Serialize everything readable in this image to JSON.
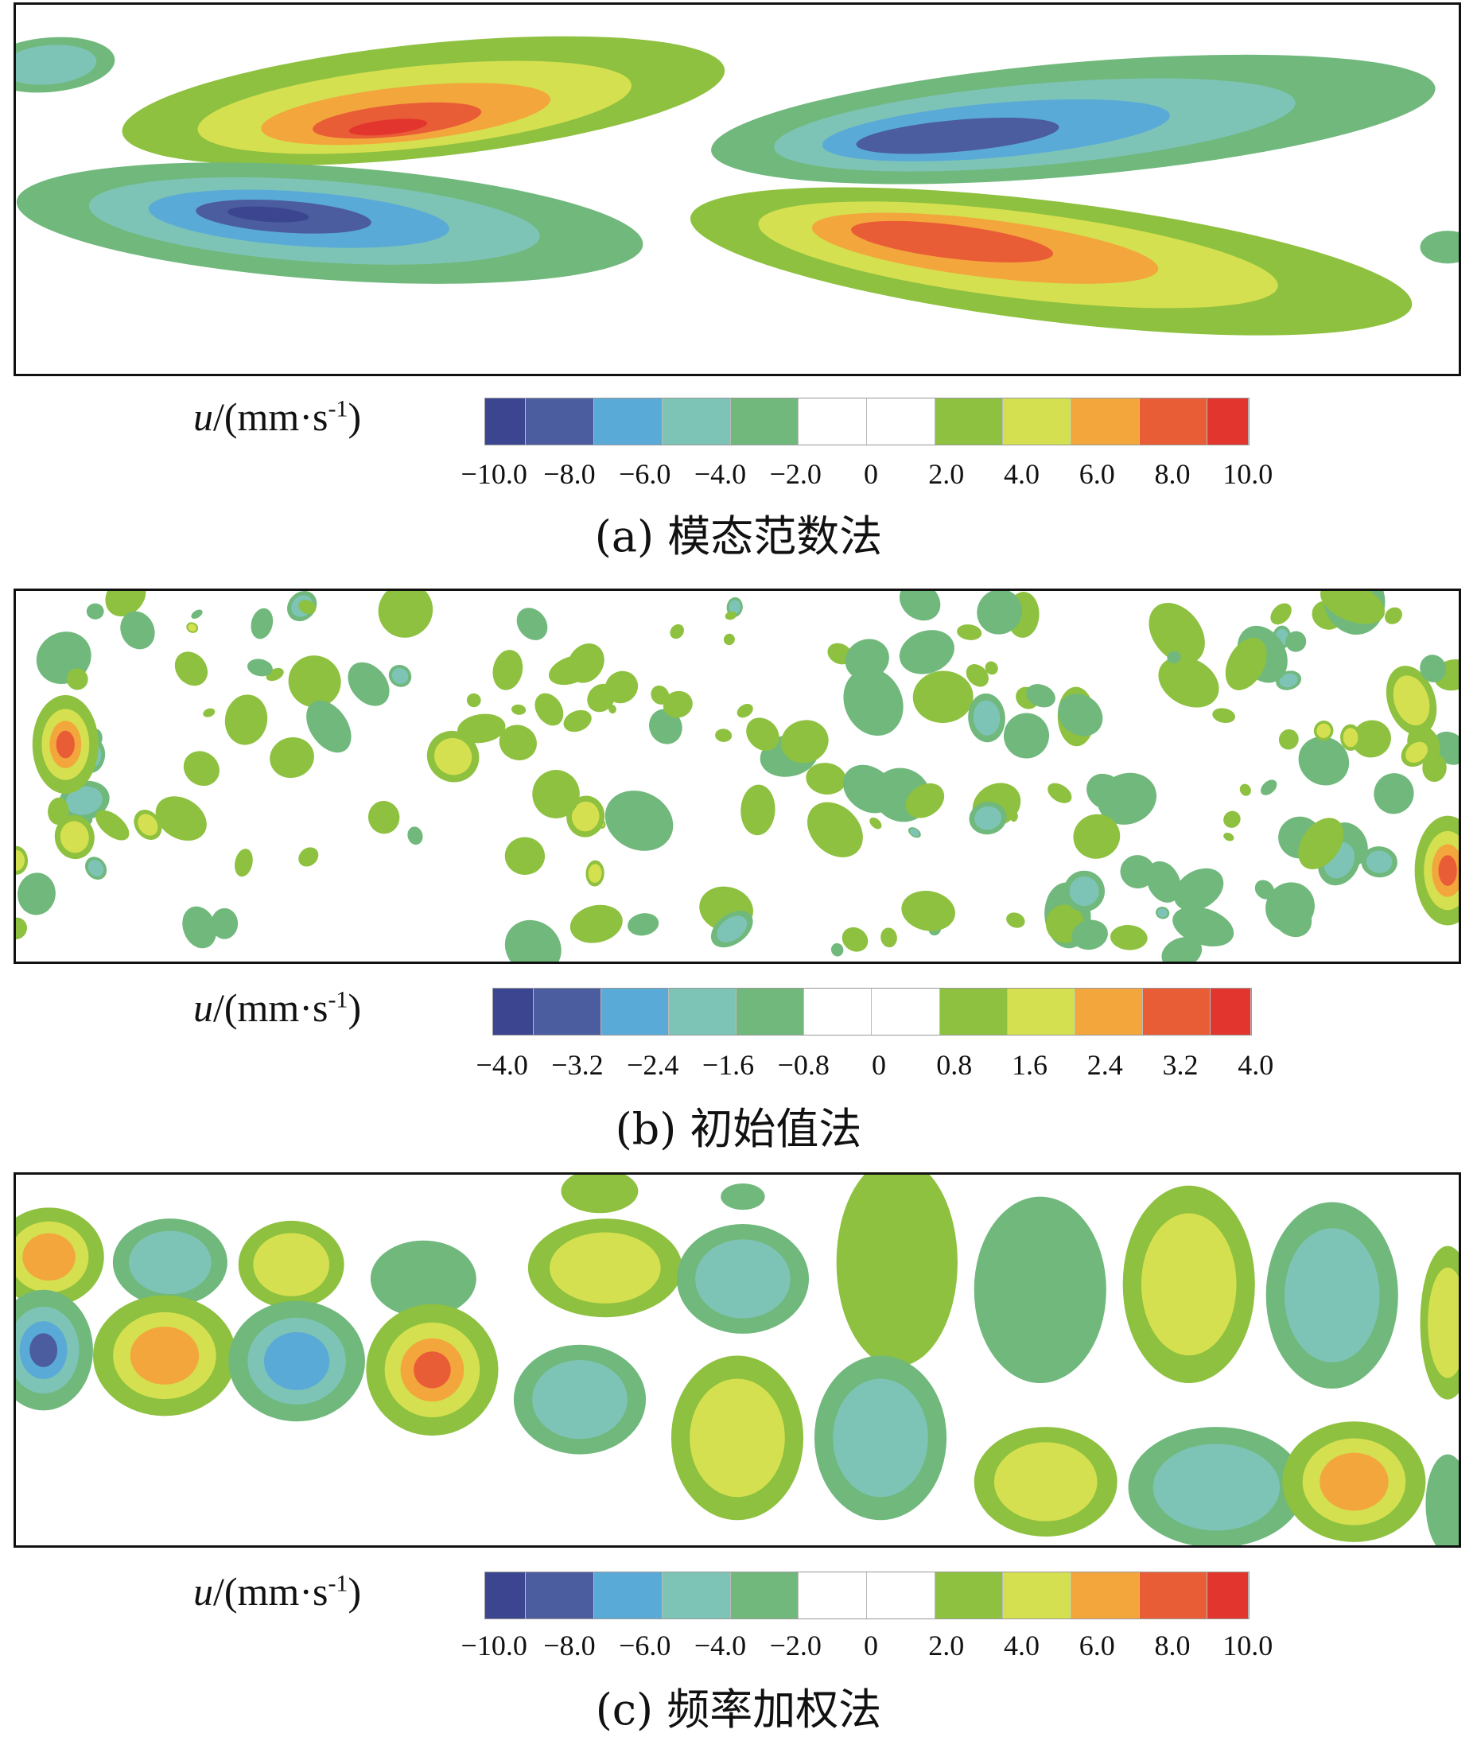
{
  "chart_data": [
    {
      "type": "heatmap",
      "title": "(a) 模态范数法",
      "colorbar_label": "u/(mm·s",
      "colorbar_label_exp": "-1",
      "colorbar_label_close": ")",
      "ticks": [
        "−10.0",
        "−8.0",
        "−6.0",
        "−4.0",
        "−2.0",
        "0",
        "2.0",
        "4.0",
        "6.0",
        "8.0",
        "10.0"
      ],
      "range": [
        -10,
        10
      ],
      "field": "paired elongated positive/negative streamwise velocity structures"
    },
    {
      "type": "heatmap",
      "title": "(b) 初始值法",
      "colorbar_label": "u/(mm·s",
      "colorbar_label_exp": "-1",
      "colorbar_label_close": ")",
      "ticks": [
        "−4.0",
        "−3.2",
        "−2.4",
        "−1.6",
        "−0.8",
        "0",
        "0.8",
        "1.6",
        "2.4",
        "3.2",
        "4.0"
      ],
      "range": [
        -4,
        4
      ],
      "field": "scattered small-scale noisy patches"
    },
    {
      "type": "heatmap",
      "title": "(c) 频率加权法",
      "colorbar_label": "u/(mm·s",
      "colorbar_label_exp": "-1",
      "colorbar_label_close": ")",
      "ticks": [
        "−10.0",
        "−8.0",
        "−6.0",
        "−4.0",
        "−2.0",
        "0",
        "2.0",
        "4.0",
        "6.0",
        "8.0",
        "10.0"
      ],
      "range": [
        -10,
        10
      ],
      "field": "staggered array of alternating sign vortical blobs"
    }
  ],
  "colors": [
    "#3b4590",
    "#4b5c9f",
    "#5aaad8",
    "#7dc4b6",
    "#70b87c",
    "#ffffff",
    "#ffffff",
    "#8ec13f",
    "#d5e050",
    "#f2a63c",
    "#e95d36",
    "#e2352e"
  ]
}
